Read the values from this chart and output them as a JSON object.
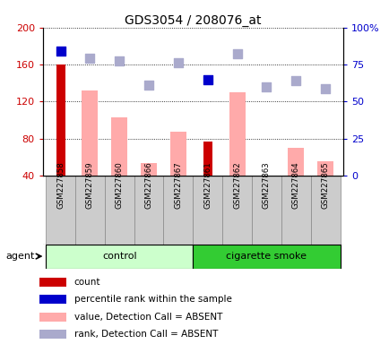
{
  "title": "GDS3054 / 208076_at",
  "samples": [
    "GSM227858",
    "GSM227859",
    "GSM227860",
    "GSM227866",
    "GSM227867",
    "GSM227861",
    "GSM227862",
    "GSM227863",
    "GSM227864",
    "GSM227865"
  ],
  "count_values": [
    160,
    null,
    null,
    null,
    null,
    77,
    null,
    null,
    null,
    null
  ],
  "percentile_rank_values": [
    84,
    null,
    null,
    null,
    null,
    65,
    null,
    null,
    null,
    null
  ],
  "value_absent": [
    null,
    132,
    103,
    53,
    87,
    null,
    130,
    null,
    70,
    55
  ],
  "rank_absent_raw": [
    null,
    79,
    77.5,
    61,
    76,
    null,
    82.5,
    60,
    64,
    58.5
  ],
  "ylim_left": [
    40,
    200
  ],
  "ylim_right": [
    0,
    100
  ],
  "yticks_left": [
    40,
    80,
    120,
    160,
    200
  ],
  "yticks_right": [
    0,
    25,
    50,
    75,
    100
  ],
  "ytick_labels_left": [
    "40",
    "80",
    "120",
    "160",
    "200"
  ],
  "ytick_labels_right": [
    "0",
    "25",
    "50",
    "75",
    "100%"
  ],
  "color_count": "#cc0000",
  "color_rank": "#0000cc",
  "color_value_absent": "#ffaaaa",
  "color_rank_absent": "#aaaacc",
  "control_color_light": "#ccffcc",
  "control_color_dark": "#33dd33",
  "smoke_color": "#33cc33",
  "agent_label": "agent",
  "control_label": "control",
  "smoke_label": "cigarette smoke",
  "bar_width": 0.55,
  "dot_size": 55,
  "n_control": 5,
  "n_smoke": 5
}
